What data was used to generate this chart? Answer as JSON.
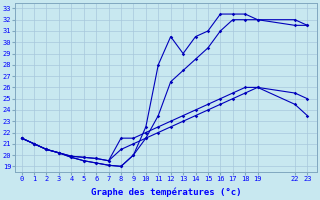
{
  "xlabel": "Graphe des températures (°c)",
  "background_color": "#c8e8f0",
  "grid_color": "#a8c8dc",
  "line_color": "#0000bb",
  "ylim": [
    19,
    33
  ],
  "ytick_vals": [
    19,
    20,
    21,
    22,
    23,
    24,
    25,
    26,
    27,
    28,
    29,
    30,
    31,
    32,
    33
  ],
  "xtick_vals": [
    0,
    1,
    2,
    3,
    4,
    5,
    6,
    7,
    8,
    9,
    10,
    11,
    12,
    13,
    14,
    15,
    16,
    17,
    18,
    19,
    22,
    23
  ],
  "xtick_labels": [
    "0",
    "1",
    "2",
    "3",
    "4",
    "5",
    "6",
    "7",
    "8",
    "9",
    "10",
    "11",
    "12",
    "13",
    "14",
    "15",
    "16",
    "17",
    "18",
    "19",
    "22",
    "23"
  ],
  "line1_x": [
    0,
    1,
    2,
    3,
    4,
    5,
    6,
    7,
    8,
    9,
    10,
    11,
    12,
    13,
    14,
    15,
    16,
    17,
    18,
    19,
    22,
    23
  ],
  "line1_y": [
    21.5,
    21.0,
    20.5,
    20.2,
    19.8,
    19.5,
    19.3,
    19.1,
    19.0,
    20.0,
    22.5,
    28.0,
    30.5,
    29.0,
    30.5,
    31.0,
    32.5,
    32.5,
    32.5,
    32.0,
    31.5,
    31.5
  ],
  "line2_x": [
    0,
    1,
    2,
    3,
    4,
    5,
    6,
    7,
    8,
    9,
    10,
    11,
    12,
    13,
    14,
    15,
    16,
    17,
    18,
    19,
    22,
    23
  ],
  "line2_y": [
    21.5,
    21.0,
    20.5,
    20.2,
    19.8,
    19.5,
    19.3,
    19.1,
    19.0,
    20.0,
    21.5,
    23.5,
    26.5,
    27.5,
    28.5,
    29.5,
    31.0,
    32.0,
    32.0,
    32.0,
    32.0,
    31.5
  ],
  "line3_x": [
    0,
    1,
    2,
    3,
    4,
    5,
    6,
    7,
    8,
    9,
    10,
    11,
    12,
    13,
    14,
    15,
    16,
    17,
    18,
    19,
    22,
    23
  ],
  "line3_y": [
    21.5,
    21.0,
    20.5,
    20.2,
    19.9,
    19.8,
    19.7,
    19.5,
    21.5,
    21.5,
    22.0,
    22.5,
    23.0,
    23.5,
    24.0,
    24.5,
    25.0,
    25.5,
    26.0,
    26.0,
    25.5,
    25.0
  ],
  "line4_x": [
    0,
    1,
    2,
    3,
    4,
    5,
    6,
    7,
    8,
    9,
    10,
    11,
    12,
    13,
    14,
    15,
    16,
    17,
    18,
    19,
    22,
    23
  ],
  "line4_y": [
    21.5,
    21.0,
    20.5,
    20.2,
    19.9,
    19.8,
    19.7,
    19.5,
    20.5,
    21.0,
    21.5,
    22.0,
    22.5,
    23.0,
    23.5,
    24.0,
    24.5,
    25.0,
    25.5,
    26.0,
    24.5,
    23.5
  ]
}
